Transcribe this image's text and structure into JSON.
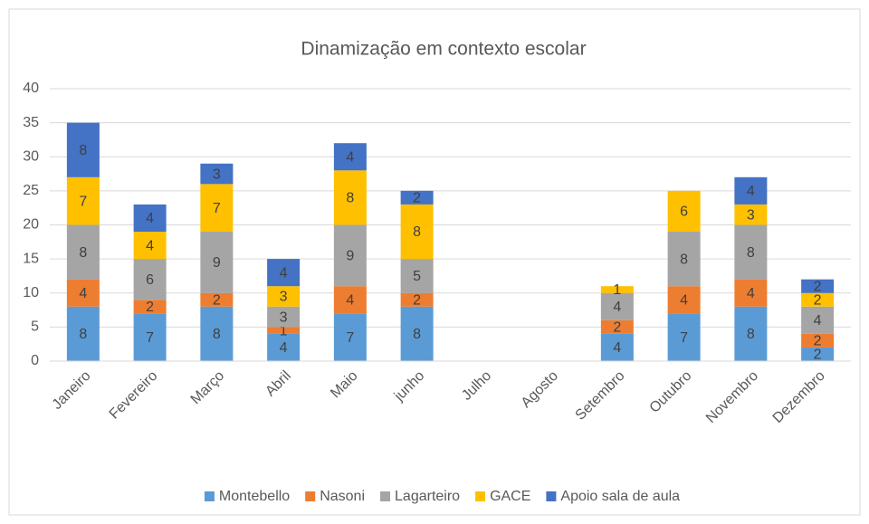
{
  "chart_data": {
    "type": "stacked_bar",
    "title": "Dinamização em contexto escolar",
    "categories": [
      "Janeiro",
      "Fevereiro",
      "Março",
      "Abril",
      "Maio",
      "junho",
      "Julho",
      "Agosto",
      "Setembro",
      "Outubro",
      "Novembro",
      "Dezembro"
    ],
    "series": [
      {
        "name": "Montebello",
        "color": "#5b9bd5",
        "values": [
          8,
          7,
          8,
          4,
          7,
          8,
          null,
          null,
          4,
          7,
          8,
          2
        ]
      },
      {
        "name": "Nasoni",
        "color": "#ed7d31",
        "values": [
          4,
          2,
          2,
          1,
          4,
          2,
          null,
          null,
          2,
          4,
          4,
          2
        ]
      },
      {
        "name": "Lagarteiro",
        "color": "#a5a5a5",
        "values": [
          8,
          6,
          9,
          3,
          9,
          5,
          null,
          null,
          4,
          8,
          8,
          4
        ]
      },
      {
        "name": "GACE",
        "color": "#ffc000",
        "values": [
          7,
          4,
          7,
          3,
          8,
          8,
          null,
          null,
          1,
          6,
          3,
          2
        ]
      },
      {
        "name": "Apoio sala de aula",
        "color": "#4472c4",
        "values": [
          8,
          4,
          3,
          4,
          4,
          2,
          null,
          null,
          null,
          null,
          4,
          2
        ]
      }
    ],
    "ylim": [
      0,
      40
    ],
    "yticks": [
      0,
      5,
      10,
      15,
      20,
      25,
      30,
      35,
      40
    ],
    "grid": true,
    "legend": "bottom"
  }
}
